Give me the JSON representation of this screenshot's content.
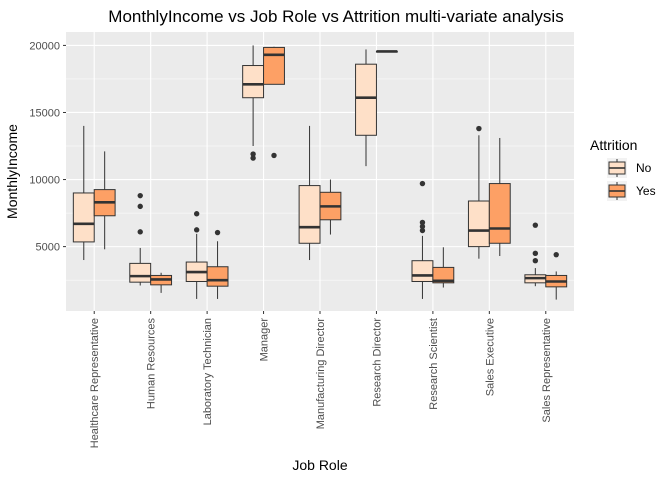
{
  "chart_data": {
    "type": "boxplot",
    "title": "MonthlyIncome vs Job Role vs Attrition multi-variate analysis",
    "xlabel": "Job Role",
    "ylabel": "MonthlyIncome",
    "ylim": [
      200,
      21000
    ],
    "yticks": [
      5000,
      10000,
      15000,
      20000
    ],
    "yticklabels": [
      "5000",
      "10000",
      "15000",
      "20000"
    ],
    "grid": true,
    "legend_position": "right",
    "legend": {
      "title": "Attrition",
      "entries": [
        "No",
        "Yes"
      ]
    },
    "colors": {
      "No": "#FEE0C8",
      "Yes": "#FDA065",
      "panel": "#EBEBEB",
      "grid": "#FFFFFF",
      "stroke": "#333333"
    },
    "categories": [
      "Healthcare Representative",
      "Human Resources",
      "Laboratory Technician",
      "Manager",
      "Manufacturing Director",
      "Research Director",
      "Research Scientist",
      "Sales Executive",
      "Sales Representative"
    ],
    "series": [
      {
        "name": "No",
        "boxes": [
          {
            "min": 4000,
            "q1": 5350,
            "median": 6700,
            "q3": 9000,
            "max": 14000,
            "outliers": []
          },
          {
            "min": 2100,
            "q1": 2350,
            "median": 2800,
            "q3": 3750,
            "max": 4900,
            "outliers": [
              6100,
              8000,
              8800
            ]
          },
          {
            "min": 1100,
            "q1": 2400,
            "median": 3100,
            "q3": 3850,
            "max": 5950,
            "outliers": [
              6250,
              7450
            ]
          },
          {
            "min": 12500,
            "q1": 16100,
            "median": 17100,
            "q3": 18500,
            "max": 20000,
            "outliers": [
              11600,
              11900
            ]
          },
          {
            "min": 4000,
            "q1": 5250,
            "median": 6450,
            "q3": 9550,
            "max": 14000,
            "outliers": []
          },
          {
            "min": 11000,
            "q1": 13300,
            "median": 16100,
            "q3": 18600,
            "max": 19700,
            "outliers": []
          },
          {
            "min": 1100,
            "q1": 2400,
            "median": 2850,
            "q3": 3950,
            "max": 5800,
            "outliers": [
              6200,
              6500,
              6800,
              9700
            ]
          },
          {
            "min": 4100,
            "q1": 5000,
            "median": 6200,
            "q3": 8400,
            "max": 13300,
            "outliers": [
              13800
            ]
          },
          {
            "min": 2050,
            "q1": 2300,
            "median": 2650,
            "q3": 2900,
            "max": 3400,
            "outliers": [
              3950,
              4500,
              6600
            ]
          }
        ]
      },
      {
        "name": "Yes",
        "boxes": [
          {
            "min": 4800,
            "q1": 7300,
            "median": 8300,
            "q3": 9250,
            "max": 12100,
            "outliers": []
          },
          {
            "min": 1550,
            "q1": 2150,
            "median": 2550,
            "q3": 2850,
            "max": 3050,
            "outliers": []
          },
          {
            "min": 1100,
            "q1": 2050,
            "median": 2500,
            "q3": 3500,
            "max": 5400,
            "outliers": [
              6050
            ]
          },
          {
            "min": 17100,
            "q1": 17100,
            "median": 19300,
            "q3": 19850,
            "max": 19900,
            "outliers": [
              11800
            ]
          },
          {
            "min": 5900,
            "q1": 7000,
            "median": 8000,
            "q3": 9050,
            "max": 10000,
            "outliers": []
          },
          {
            "min": 19550,
            "q1": 19550,
            "median": 19550,
            "q3": 19550,
            "max": 19550,
            "outliers": []
          },
          {
            "min": 1950,
            "q1": 2300,
            "median": 2450,
            "q3": 3450,
            "max": 4950,
            "outliers": []
          },
          {
            "min": 4300,
            "q1": 5250,
            "median": 6350,
            "q3": 9700,
            "max": 13100,
            "outliers": []
          },
          {
            "min": 1050,
            "q1": 2000,
            "median": 2400,
            "q3": 2850,
            "max": 3150,
            "outliers": [
              4400
            ]
          }
        ]
      }
    ]
  }
}
